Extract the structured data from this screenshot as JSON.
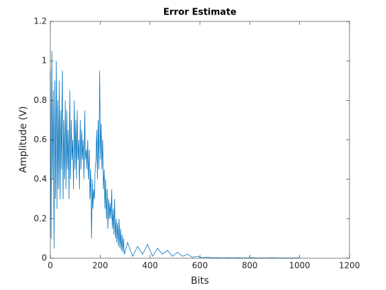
{
  "chart_data": {
    "type": "line",
    "title": "Error Estimate",
    "x_label": "Bits",
    "y_label": "Amplitude (V)",
    "xlim": [
      0,
      1200
    ],
    "ylim": [
      0,
      1.2
    ],
    "xticks": [
      0,
      200,
      400,
      600,
      800,
      1000,
      1200
    ],
    "yticks": [
      0,
      0.2,
      0.4,
      0.6,
      0.8,
      1,
      1.2
    ],
    "series": [
      {
        "color": "#0072bd",
        "x": [
          0,
          3,
          6,
          9,
          12,
          15,
          18,
          21,
          24,
          27,
          30,
          33,
          36,
          39,
          42,
          45,
          48,
          51,
          54,
          57,
          60,
          63,
          66,
          69,
          72,
          75,
          78,
          81,
          84,
          87,
          90,
          93,
          96,
          99,
          102,
          105,
          108,
          111,
          114,
          117,
          120,
          123,
          126,
          129,
          132,
          135,
          138,
          141,
          144,
          147,
          150,
          153,
          156,
          159,
          162,
          165,
          168,
          171,
          174,
          177,
          180,
          183,
          186,
          189,
          192,
          195,
          198,
          201,
          204,
          207,
          210,
          213,
          216,
          219,
          222,
          225,
          228,
          231,
          234,
          237,
          240,
          243,
          246,
          249,
          252,
          255,
          258,
          261,
          264,
          267,
          270,
          273,
          276,
          279,
          282,
          285,
          288,
          291,
          294,
          297,
          310,
          330,
          350,
          370,
          390,
          410,
          430,
          450,
          470,
          490,
          510,
          530,
          550,
          570,
          590,
          610,
          630,
          650,
          670,
          690,
          710,
          730,
          750,
          770,
          790,
          810,
          830,
          850,
          870,
          890,
          910,
          930,
          950,
          970,
          990,
          1000
        ],
        "values": [
          0.95,
          0.1,
          1.05,
          0.4,
          0.85,
          0.05,
          0.9,
          0.3,
          1.0,
          0.25,
          0.8,
          0.35,
          0.9,
          0.3,
          0.75,
          0.45,
          0.95,
          0.3,
          0.7,
          0.4,
          0.8,
          0.35,
          0.75,
          0.45,
          0.65,
          0.3,
          0.85,
          0.4,
          0.7,
          0.5,
          0.6,
          0.35,
          0.8,
          0.45,
          0.7,
          0.4,
          0.75,
          0.5,
          0.6,
          0.35,
          0.7,
          0.45,
          0.65,
          0.5,
          0.6,
          0.4,
          0.75,
          0.5,
          0.55,
          0.45,
          0.6,
          0.4,
          0.55,
          0.3,
          0.45,
          0.1,
          0.4,
          0.25,
          0.35,
          0.3,
          0.45,
          0.5,
          0.65,
          0.4,
          0.7,
          0.45,
          0.95,
          0.5,
          0.68,
          0.45,
          0.6,
          0.35,
          0.45,
          0.25,
          0.4,
          0.2,
          0.35,
          0.15,
          0.3,
          0.2,
          0.28,
          0.2,
          0.35,
          0.15,
          0.25,
          0.12,
          0.3,
          0.1,
          0.2,
          0.08,
          0.18,
          0.06,
          0.2,
          0.05,
          0.15,
          0.04,
          0.12,
          0.03,
          0.1,
          0.02,
          0.08,
          0.01,
          0.06,
          0.02,
          0.07,
          0.01,
          0.05,
          0.02,
          0.04,
          0.01,
          0.03,
          0.01,
          0.02,
          0.005,
          0.01,
          0.003,
          0.005,
          0.002,
          0.003,
          0.001,
          0.002,
          0.001,
          0.002,
          0.001,
          0.001,
          0.002,
          0.001,
          0.001,
          0.001,
          0.002,
          0.001,
          0.001,
          0.001,
          0.001,
          0.001,
          0.001
        ]
      }
    ]
  }
}
